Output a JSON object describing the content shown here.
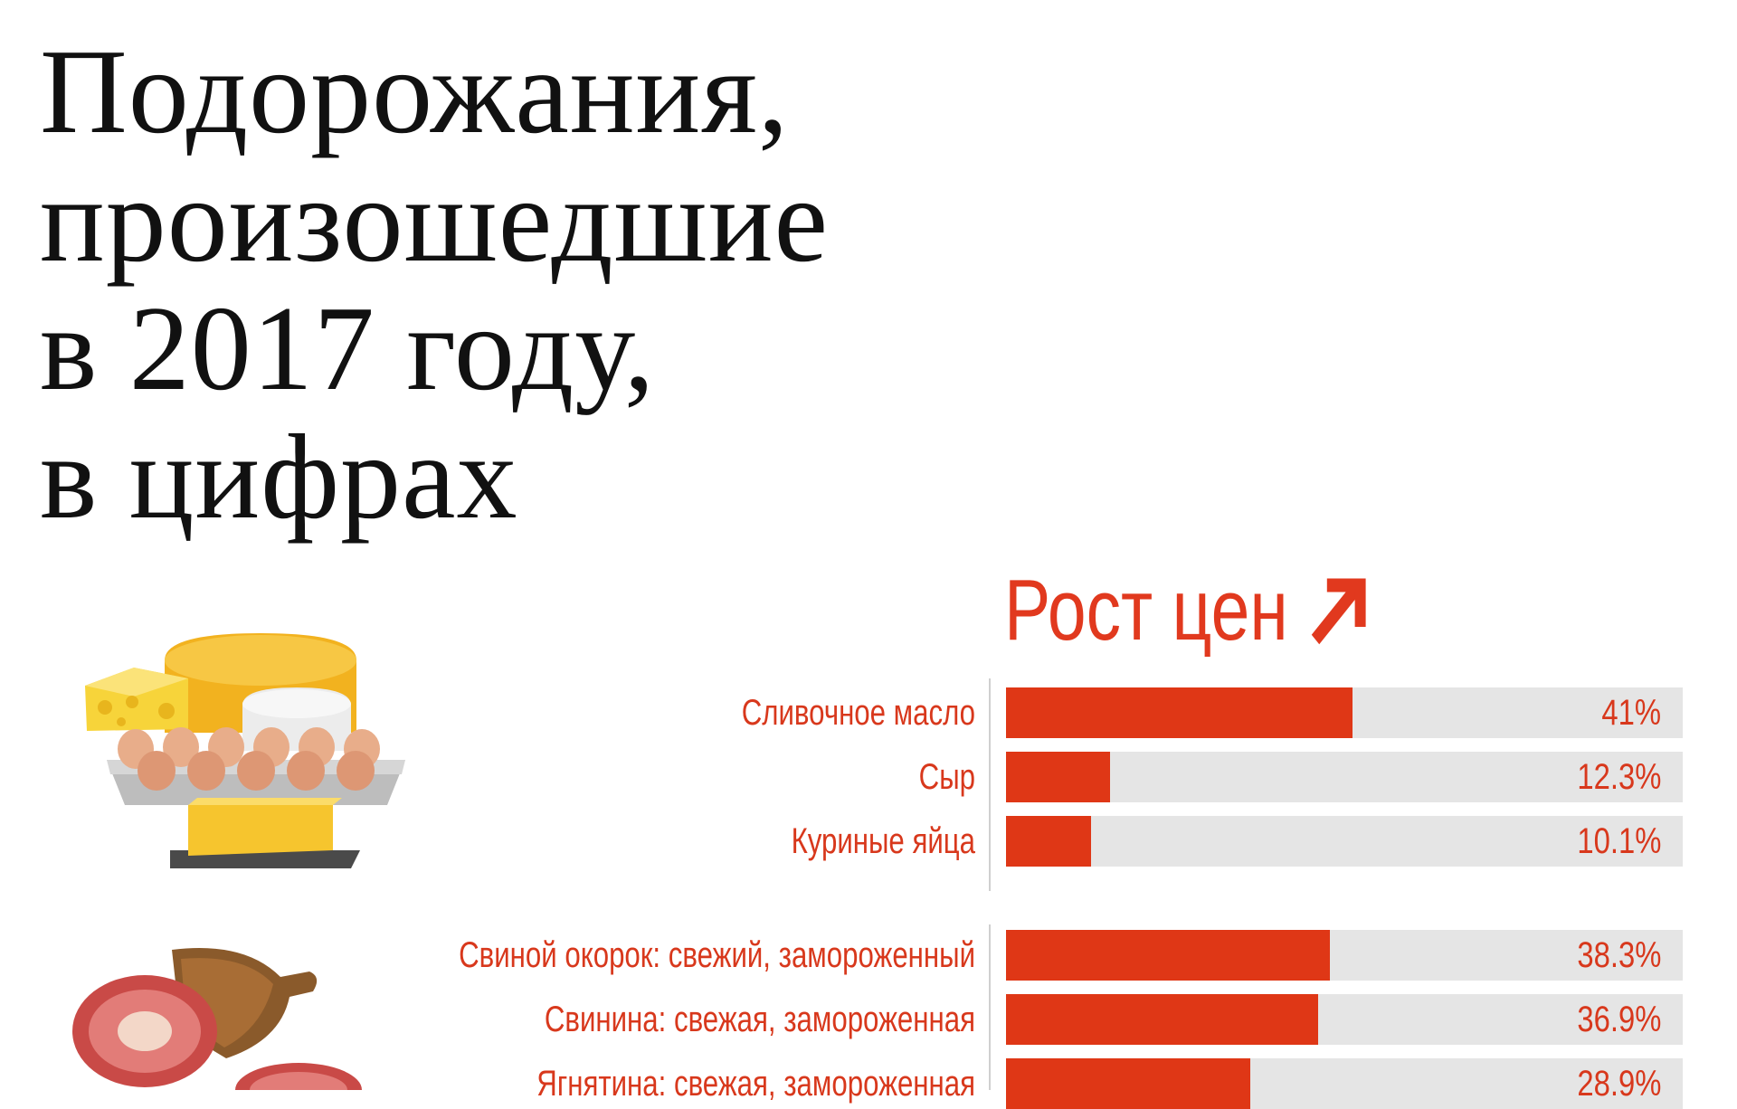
{
  "title_lines": [
    "Подорожания,",
    "произошедшие",
    "в 2017 году,",
    "в цифрах"
  ],
  "colors": {
    "accent": "#df3716",
    "track": "#e5e5e5",
    "title": "#111111"
  },
  "icons": {
    "heading_arrow": "arrow-up-right-icon",
    "dairy": "dairy-illustration",
    "meat": "meat-illustration"
  },
  "chart_data": {
    "type": "bar",
    "orientation": "horizontal",
    "title": "Рост цен",
    "unit": "%",
    "xlim": [
      0,
      80
    ],
    "groups": [
      {
        "group": "dairy",
        "categories": [
          "Сливочное масло",
          "Сыр",
          "Куриные яйца"
        ],
        "values": [
          41,
          12.3,
          10.1
        ],
        "value_labels": [
          "41%",
          "12.3%",
          "10.1%"
        ]
      },
      {
        "group": "meat",
        "categories": [
          "Свиной окорок: свежий, замороженный",
          "Свинина: свежая, замороженная",
          "Ягнятина: свежая, замороженная"
        ],
        "values": [
          38.3,
          36.9,
          28.9
        ],
        "value_labels": [
          "38.3%",
          "36.9%",
          "28.9%"
        ]
      }
    ]
  }
}
